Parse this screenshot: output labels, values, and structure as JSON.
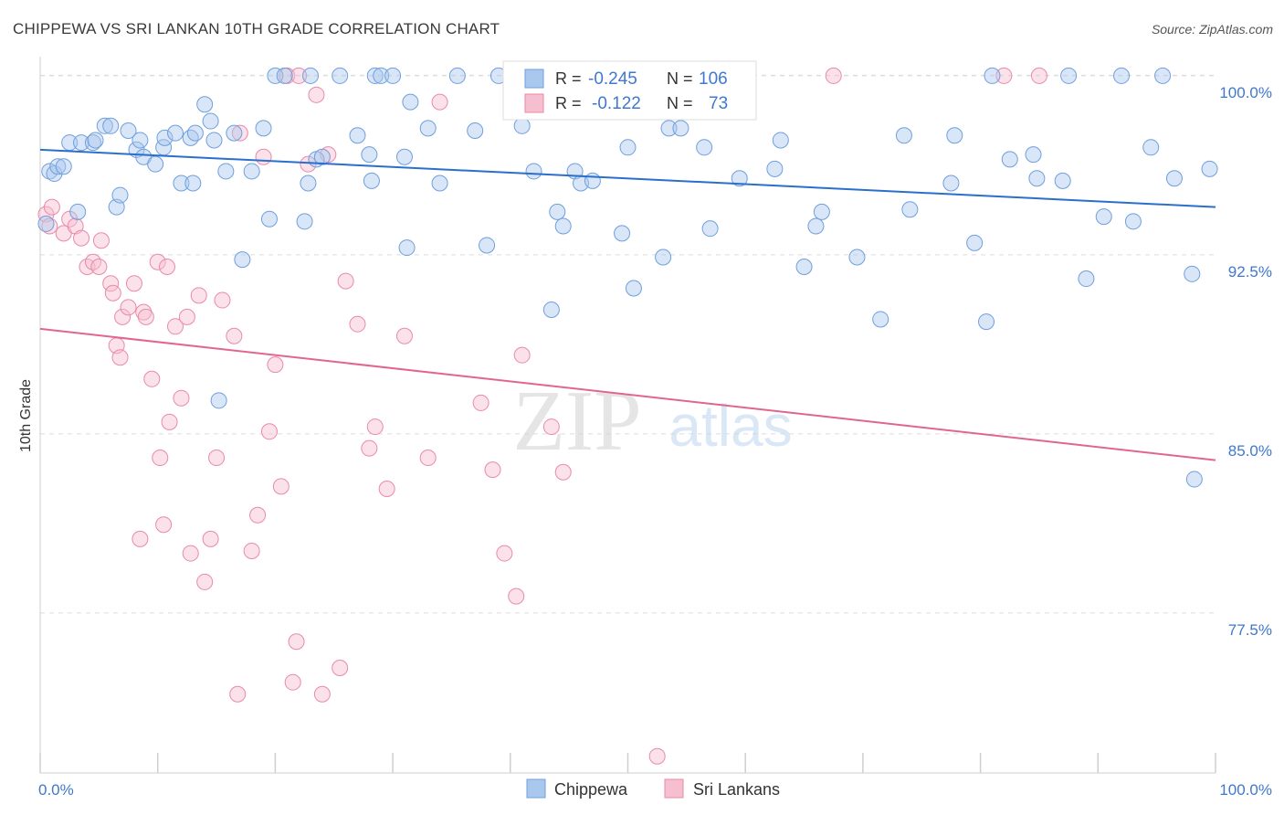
{
  "header": {
    "title": "CHIPPEWA VS SRI LANKAN 10TH GRADE CORRELATION CHART",
    "source": "Source: ZipAtlas.com"
  },
  "watermark": {
    "zip": "ZIP",
    "atlas": "atlas"
  },
  "stats": {
    "blue": {
      "r_label": "R =",
      "r_value": "-0.245",
      "n_label": "N =",
      "n_value": "106"
    },
    "pink": {
      "r_label": "R =",
      "r_value": "-0.122",
      "n_label": "N =",
      "n_value": "73"
    }
  },
  "colors": {
    "blue_fill": "#aac8ee",
    "blue_stroke": "#6f9fdc",
    "blue_line": "#2a6fcc",
    "pink_fill": "#f6bfd0",
    "pink_stroke": "#e98aa8",
    "pink_line": "#e06690",
    "tick_text": "#3f78cf",
    "grid": "#dcdcdc"
  },
  "chart_data": {
    "type": "scatter",
    "title": "CHIPPEWA VS SRI LANKAN 10TH GRADE CORRELATION CHART",
    "xlabel": "",
    "ylabel": "10th Grade",
    "xlim": [
      0,
      100
    ],
    "ylim": [
      70.8,
      100.8
    ],
    "x_tick_labels": [
      "0.0%",
      "100.0%"
    ],
    "y_ticks": [
      77.5,
      85.0,
      92.5,
      100.0
    ],
    "y_tick_labels": [
      "77.5%",
      "85.0%",
      "92.5%",
      "100.0%"
    ],
    "grid": true,
    "legend_position": "bottom-center",
    "series": [
      {
        "name": "Chippewa",
        "trend": {
          "x": [
            0,
            100
          ],
          "y": [
            96.9,
            94.5
          ]
        },
        "points": [
          [
            0.5,
            93.8
          ],
          [
            0.8,
            96.0
          ],
          [
            1.2,
            95.9
          ],
          [
            1.5,
            96.2
          ],
          [
            2.0,
            96.2
          ],
          [
            2.5,
            97.2
          ],
          [
            3.2,
            94.3
          ],
          [
            3.5,
            97.2
          ],
          [
            4.5,
            97.2
          ],
          [
            4.7,
            97.3
          ],
          [
            5.5,
            97.9
          ],
          [
            6.0,
            97.9
          ],
          [
            6.5,
            94.5
          ],
          [
            6.8,
            95.0
          ],
          [
            7.5,
            97.7
          ],
          [
            8.2,
            96.9
          ],
          [
            8.5,
            97.3
          ],
          [
            8.8,
            96.6
          ],
          [
            9.8,
            96.3
          ],
          [
            10.5,
            97.0
          ],
          [
            10.6,
            97.4
          ],
          [
            11.5,
            97.6
          ],
          [
            12.0,
            95.5
          ],
          [
            12.8,
            97.4
          ],
          [
            13.0,
            95.5
          ],
          [
            13.2,
            97.6
          ],
          [
            14.0,
            98.8
          ],
          [
            14.5,
            98.1
          ],
          [
            14.8,
            97.3
          ],
          [
            15.2,
            86.4
          ],
          [
            15.8,
            96.0
          ],
          [
            16.5,
            97.6
          ],
          [
            17.2,
            92.3
          ],
          [
            18.0,
            96.0
          ],
          [
            19.0,
            97.8
          ],
          [
            19.5,
            94.0
          ],
          [
            20.0,
            100.0
          ],
          [
            20.8,
            100.0
          ],
          [
            22.5,
            93.9
          ],
          [
            22.8,
            95.5
          ],
          [
            23.0,
            100.0
          ],
          [
            23.5,
            96.5
          ],
          [
            24.0,
            96.6
          ],
          [
            25.5,
            100.0
          ],
          [
            27.0,
            97.5
          ],
          [
            28.0,
            96.7
          ],
          [
            28.2,
            95.6
          ],
          [
            28.5,
            100.0
          ],
          [
            29.0,
            100.0
          ],
          [
            30.0,
            100.0
          ],
          [
            31.0,
            96.6
          ],
          [
            31.2,
            92.8
          ],
          [
            31.5,
            98.9
          ],
          [
            33.0,
            97.8
          ],
          [
            34.0,
            95.5
          ],
          [
            35.5,
            100.0
          ],
          [
            37.0,
            97.7
          ],
          [
            38.0,
            92.9
          ],
          [
            39.0,
            100.0
          ],
          [
            40.5,
            99.2
          ],
          [
            41.0,
            97.9
          ],
          [
            42.0,
            96.0
          ],
          [
            43.5,
            90.2
          ],
          [
            44.0,
            94.3
          ],
          [
            44.5,
            93.7
          ],
          [
            45.5,
            96.0
          ],
          [
            46.0,
            95.5
          ],
          [
            47.0,
            95.6
          ],
          [
            49.5,
            93.4
          ],
          [
            50.0,
            97.0
          ],
          [
            50.5,
            91.1
          ],
          [
            53.0,
            92.4
          ],
          [
            53.5,
            97.8
          ],
          [
            54.0,
            99.3
          ],
          [
            54.5,
            97.8
          ],
          [
            56.5,
            97.0
          ],
          [
            57.0,
            93.6
          ],
          [
            59.5,
            95.7
          ],
          [
            62.5,
            96.1
          ],
          [
            63.0,
            97.3
          ],
          [
            65.0,
            92.0
          ],
          [
            66.0,
            93.7
          ],
          [
            66.5,
            94.3
          ],
          [
            69.5,
            92.4
          ],
          [
            71.5,
            89.8
          ],
          [
            73.5,
            97.5
          ],
          [
            74.0,
            94.4
          ],
          [
            77.5,
            95.5
          ],
          [
            77.8,
            97.5
          ],
          [
            79.5,
            93.0
          ],
          [
            80.5,
            89.7
          ],
          [
            81.0,
            100.0
          ],
          [
            82.5,
            96.5
          ],
          [
            84.5,
            96.7
          ],
          [
            84.8,
            95.7
          ],
          [
            87.0,
            95.6
          ],
          [
            87.5,
            100.0
          ],
          [
            89.0,
            91.5
          ],
          [
            90.5,
            94.1
          ],
          [
            92.0,
            100.0
          ],
          [
            93.0,
            93.9
          ],
          [
            94.5,
            97.0
          ],
          [
            95.5,
            100.0
          ],
          [
            96.5,
            95.7
          ],
          [
            98.0,
            91.7
          ],
          [
            98.2,
            83.1
          ],
          [
            99.5,
            96.1
          ]
        ]
      },
      {
        "name": "Sri Lankans",
        "trend": {
          "x": [
            0,
            100
          ],
          "y": [
            89.4,
            83.9
          ]
        },
        "points": [
          [
            0.5,
            94.2
          ],
          [
            0.8,
            93.7
          ],
          [
            1.0,
            94.5
          ],
          [
            2.0,
            93.4
          ],
          [
            2.5,
            94.0
          ],
          [
            3.0,
            93.7
          ],
          [
            3.5,
            93.2
          ],
          [
            4.0,
            92.0
          ],
          [
            4.5,
            92.2
          ],
          [
            5.0,
            92.0
          ],
          [
            5.2,
            93.1
          ],
          [
            6.0,
            91.3
          ],
          [
            6.2,
            90.9
          ],
          [
            6.5,
            88.7
          ],
          [
            6.8,
            88.2
          ],
          [
            7.0,
            89.9
          ],
          [
            7.5,
            90.3
          ],
          [
            8.0,
            91.3
          ],
          [
            8.5,
            80.6
          ],
          [
            8.8,
            90.1
          ],
          [
            9.0,
            89.9
          ],
          [
            9.5,
            87.3
          ],
          [
            10.0,
            92.2
          ],
          [
            10.2,
            84.0
          ],
          [
            10.5,
            81.2
          ],
          [
            10.8,
            92.0
          ],
          [
            11.0,
            85.5
          ],
          [
            11.5,
            89.5
          ],
          [
            12.0,
            86.5
          ],
          [
            12.5,
            89.9
          ],
          [
            12.8,
            80.0
          ],
          [
            13.5,
            90.8
          ],
          [
            14.0,
            78.8
          ],
          [
            14.5,
            80.6
          ],
          [
            15.0,
            84.0
          ],
          [
            15.5,
            90.6
          ],
          [
            16.5,
            89.1
          ],
          [
            16.8,
            74.1
          ],
          [
            17.0,
            97.6
          ],
          [
            18.0,
            80.1
          ],
          [
            18.5,
            81.6
          ],
          [
            19.0,
            96.6
          ],
          [
            19.5,
            85.1
          ],
          [
            20.0,
            87.9
          ],
          [
            20.5,
            82.8
          ],
          [
            21.0,
            100.0
          ],
          [
            21.5,
            74.6
          ],
          [
            21.8,
            76.3
          ],
          [
            22.0,
            100.0
          ],
          [
            22.8,
            96.3
          ],
          [
            23.5,
            99.2
          ],
          [
            24.0,
            74.1
          ],
          [
            24.5,
            96.7
          ],
          [
            25.5,
            75.2
          ],
          [
            26.0,
            91.4
          ],
          [
            27.0,
            89.6
          ],
          [
            28.0,
            84.4
          ],
          [
            28.5,
            85.3
          ],
          [
            29.5,
            82.7
          ],
          [
            31.0,
            89.1
          ],
          [
            33.0,
            84.0
          ],
          [
            34.0,
            98.9
          ],
          [
            37.5,
            86.3
          ],
          [
            38.5,
            83.5
          ],
          [
            39.5,
            80.0
          ],
          [
            40.5,
            78.2
          ],
          [
            41.0,
            88.3
          ],
          [
            43.5,
            85.3
          ],
          [
            44.5,
            83.4
          ],
          [
            52.5,
            71.5
          ],
          [
            67.5,
            100.0
          ],
          [
            82.0,
            100.0
          ],
          [
            85.0,
            100.0
          ]
        ]
      }
    ]
  }
}
